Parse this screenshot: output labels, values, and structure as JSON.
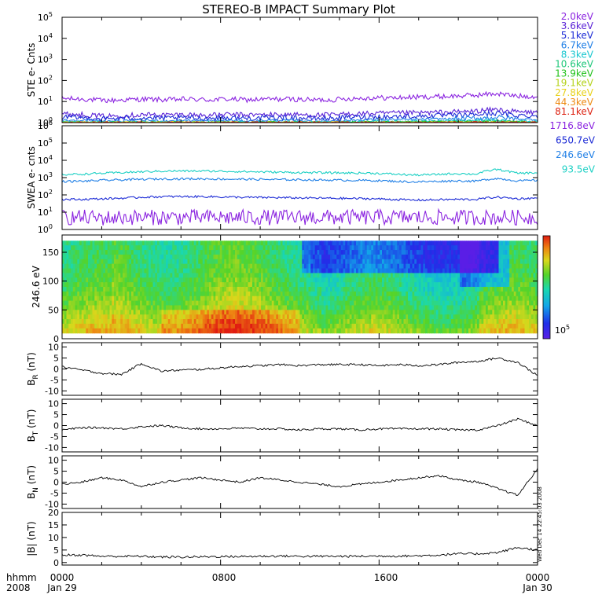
{
  "title": "STEREO-B IMPACT Summary Plot",
  "footer": {
    "left_top": "hhmm",
    "left_bottom": "2008",
    "ticks": [
      "0000",
      "0800",
      "1600",
      "0000"
    ],
    "dates": [
      "Jan 29",
      "Jan 30"
    ]
  },
  "side_stamp": "Wed Dec 14 22:45:03 2008",
  "colorbar": {
    "label": "10",
    "exp": "5"
  },
  "chart_data": [
    {
      "type": "line",
      "panel": "ste",
      "ylabel": "STE e- Cnts",
      "yscale": "log",
      "ylim": [
        1,
        100000
      ],
      "yticks": [
        "10",
        "10",
        "10",
        "10",
        "10",
        "10"
      ],
      "ytick_exp": [
        "0",
        "1",
        "2",
        "3",
        "4",
        "5"
      ],
      "xrange_hours": [
        0,
        24
      ],
      "series": [
        {
          "name": "2.0keV",
          "color": "#8b24e0",
          "values": [
            14,
            13,
            11,
            12,
            13,
            12,
            13,
            12,
            13,
            12,
            13,
            13,
            12,
            12,
            14,
            15,
            15,
            16,
            17,
            18,
            20,
            24,
            18,
            18
          ]
        },
        {
          "name": "3.6keV",
          "color": "#5a22d6",
          "values": [
            2.6,
            2.4,
            2.0,
            2.2,
            2.4,
            2.3,
            2.4,
            2.2,
            2.4,
            2.3,
            2.4,
            2.4,
            2.3,
            2.3,
            2.6,
            2.7,
            2.8,
            2.9,
            3.0,
            3.2,
            3.5,
            4.2,
            3.2,
            3.0
          ]
        },
        {
          "name": "5.1keV",
          "color": "#1c2bd6",
          "values": [
            1.8,
            1.7,
            1.5,
            1.6,
            1.7,
            1.6,
            1.7,
            1.6,
            1.7,
            1.6,
            1.7,
            1.7,
            1.6,
            1.6,
            1.8,
            1.9,
            1.9,
            2.0,
            2.1,
            2.2,
            2.4,
            2.8,
            2.2,
            2.1
          ]
        },
        {
          "name": "6.7keV",
          "color": "#1f7fe6",
          "values": [
            1.3,
            1.3,
            1.2,
            1.2,
            1.3,
            1.2,
            1.3,
            1.2,
            1.3,
            1.2,
            1.3,
            1.3,
            1.2,
            1.2,
            1.3,
            1.4,
            1.4,
            1.4,
            1.5,
            1.5,
            1.6,
            1.8,
            1.5,
            1.4
          ]
        },
        {
          "name": "8.3keV",
          "color": "#17c7cf",
          "values": [
            1.1,
            1.1,
            1.05,
            1.05,
            1.1,
            1.05,
            1.1,
            1.05,
            1.1,
            1.05,
            1.1,
            1.1,
            1.05,
            1.05,
            1.1,
            1.15,
            1.15,
            1.15,
            1.2,
            1.2,
            1.25,
            1.35,
            1.2,
            1.15
          ]
        },
        {
          "name": "10.6keV",
          "color": "#1ec77a",
          "values": [
            1.05,
            1.05,
            1.0,
            1.0,
            1.05,
            1.0,
            1.05,
            1.0,
            1.05,
            1.0,
            1.05,
            1.05,
            1.0,
            1.0,
            1.05,
            1.1,
            1.1,
            1.1,
            1.1,
            1.15,
            1.15,
            1.2,
            1.1,
            1.1
          ]
        },
        {
          "name": "13.9keV",
          "color": "#22c21a",
          "values": [
            1.02,
            1.02,
            1.0,
            1.0,
            1.02,
            1.0,
            1.02,
            1.0,
            1.02,
            1.0,
            1.02,
            1.02,
            1.0,
            1.0,
            1.02,
            1.04,
            1.04,
            1.05,
            1.05,
            1.06,
            1.07,
            1.1,
            1.05,
            1.04
          ]
        },
        {
          "name": "19.1keV",
          "color": "#b4d21a",
          "values": [
            1.0,
            1.0,
            1.0,
            1.0,
            1.0,
            1.0,
            1.0,
            1.0,
            1.0,
            1.0,
            1.0,
            1.0,
            1.0,
            1.0,
            1.0,
            1.0,
            1.0,
            1.0,
            1.0,
            1.0,
            1.0,
            1.0,
            1.0,
            1.0
          ]
        },
        {
          "name": "27.8keV",
          "color": "#e8d21a",
          "values": [
            1.0,
            1.0,
            1.0,
            1.0,
            1.0,
            1.0,
            1.0,
            1.0,
            1.0,
            1.0,
            1.0,
            1.0,
            1.0,
            1.0,
            1.0,
            1.0,
            1.0,
            1.0,
            1.0,
            1.0,
            1.0,
            1.0,
            1.0,
            1.0
          ]
        },
        {
          "name": "44.3keV",
          "color": "#ee8a12",
          "values": [
            1.0,
            1.0,
            1.0,
            1.0,
            1.0,
            1.0,
            1.0,
            1.0,
            1.0,
            1.0,
            1.0,
            1.0,
            1.0,
            1.0,
            1.0,
            1.0,
            1.0,
            1.0,
            1.0,
            1.0,
            1.0,
            1.0,
            1.0,
            1.0
          ]
        },
        {
          "name": "81.1keV",
          "color": "#dd2414",
          "values": [
            1.0,
            1.0,
            1.0,
            1.0,
            1.0,
            1.0,
            1.0,
            1.0,
            1.0,
            1.0,
            1.0,
            1.0,
            1.0,
            1.0,
            1.0,
            1.0,
            1.0,
            1.0,
            1.0,
            1.0,
            1.0,
            1.0,
            1.0,
            1.0
          ]
        }
      ]
    },
    {
      "type": "line",
      "panel": "swea",
      "ylabel": "SWEA e- cnts",
      "yscale": "log",
      "ylim": [
        1,
        1000000
      ],
      "yticks": [
        "10",
        "10",
        "10",
        "10",
        "10",
        "10",
        "10"
      ],
      "ytick_exp": [
        "0",
        "1",
        "2",
        "3",
        "4",
        "5",
        "6"
      ],
      "xrange_hours": [
        0,
        24
      ],
      "series": [
        {
          "name": "1716.8eV",
          "color": "#8b24e0",
          "values": [
            5,
            5,
            4.5,
            5,
            5,
            5,
            5,
            5,
            5,
            5,
            5,
            5,
            5,
            5,
            5,
            5,
            5,
            5,
            5,
            5,
            5,
            5,
            5,
            5
          ]
        },
        {
          "name": "650.7eV",
          "color": "#1c2bd6",
          "values": [
            55,
            55,
            60,
            65,
            75,
            80,
            80,
            80,
            75,
            72,
            70,
            68,
            66,
            64,
            62,
            60,
            55,
            50,
            52,
            55,
            55,
            75,
            60,
            65
          ]
        },
        {
          "name": "246.6eV",
          "color": "#1f7fe6",
          "values": [
            600,
            620,
            700,
            750,
            800,
            850,
            850,
            850,
            820,
            800,
            780,
            760,
            740,
            720,
            700,
            680,
            620,
            560,
            600,
            650,
            620,
            900,
            650,
            700
          ]
        },
        {
          "name": "93.5eV",
          "color": "#1cd0c4",
          "values": [
            1500,
            1600,
            1800,
            2000,
            2200,
            2400,
            2400,
            2400,
            2300,
            2200,
            2100,
            2000,
            1950,
            1900,
            1850,
            1800,
            1600,
            1400,
            1500,
            1700,
            1600,
            3000,
            1800,
            1900
          ]
        }
      ]
    },
    {
      "type": "heatmap",
      "panel": "pad",
      "ylabel": "246.6 eV",
      "ylim": [
        0,
        180
      ],
      "yticks": [
        "0",
        "50",
        "100",
        "150"
      ],
      "ytick_values": [
        0,
        50,
        100,
        150
      ],
      "xrange_hours": [
        0,
        24
      ]
    },
    {
      "type": "line",
      "panel": "br",
      "ylabel": "B",
      "ylabel_sub": "R",
      "ylabel_unit": "(nT)",
      "ylim": [
        -12,
        12
      ],
      "yticks": [
        "-10",
        "-5",
        "0",
        "5",
        "10"
      ],
      "ytick_values": [
        -10,
        -5,
        0,
        5,
        10
      ],
      "xrange_hours": [
        0,
        24
      ],
      "series": [
        {
          "name": "",
          "color": "#000000",
          "values": [
            1,
            -0.5,
            -2,
            -2.5,
            2.5,
            -1,
            -0.5,
            -0.2,
            0.5,
            1.2,
            1.5,
            2,
            1.5,
            2,
            2,
            2,
            1.5,
            2,
            1.5,
            2,
            3,
            3.5,
            5,
            3,
            -3
          ]
        }
      ]
    },
    {
      "type": "line",
      "panel": "bt",
      "ylabel": "B",
      "ylabel_sub": "T",
      "ylabel_unit": "(nT)",
      "ylim": [
        -12,
        12
      ],
      "yticks": [
        "-10",
        "-5",
        "0",
        "5",
        "10"
      ],
      "ytick_values": [
        -10,
        -5,
        0,
        5,
        10
      ],
      "xrange_hours": [
        0,
        24
      ],
      "series": [
        {
          "name": "",
          "color": "#000000",
          "values": [
            -2,
            -1,
            -1,
            -1.5,
            -0.5,
            0,
            -1,
            -1.5,
            -1.5,
            -1.2,
            -1.5,
            -1.5,
            -2,
            -1.5,
            -1.5,
            -2,
            -1.5,
            -1.5,
            -1.5,
            -1.5,
            -2,
            -2,
            0,
            3,
            0
          ]
        }
      ]
    },
    {
      "type": "line",
      "panel": "bn",
      "ylabel": "B",
      "ylabel_sub": "N",
      "ylabel_unit": "(nT)",
      "ylim": [
        -12,
        12
      ],
      "yticks": [
        "-10",
        "-5",
        "0",
        "5",
        "10"
      ],
      "ytick_values": [
        -10,
        -5,
        0,
        5,
        10
      ],
      "xrange_hours": [
        0,
        24
      ],
      "series": [
        {
          "name": "",
          "color": "#000000",
          "values": [
            -1,
            0,
            2,
            1,
            -2,
            0,
            1,
            2,
            1,
            0,
            2,
            1,
            0,
            -1,
            -2,
            -1,
            0,
            1,
            2,
            3,
            1,
            0,
            -3,
            -6,
            6
          ]
        }
      ]
    },
    {
      "type": "line",
      "panel": "bmag",
      "ylabel": "|B| (nT)",
      "ylim": [
        -1,
        20
      ],
      "yticks": [
        "0",
        "5",
        "10",
        "15",
        "20"
      ],
      "ytick_values": [
        0,
        5,
        10,
        15,
        20
      ],
      "xrange_hours": [
        0,
        24
      ],
      "series": [
        {
          "name": "",
          "color": "#000000",
          "values": [
            3,
            3,
            2.5,
            2.5,
            2.5,
            2.2,
            2.2,
            2.3,
            2.4,
            2.4,
            2.5,
            2.6,
            2.5,
            2.5,
            2.5,
            2.5,
            2.6,
            2.6,
            2.7,
            3,
            3.5,
            3.5,
            4,
            6,
            5
          ]
        }
      ]
    }
  ]
}
